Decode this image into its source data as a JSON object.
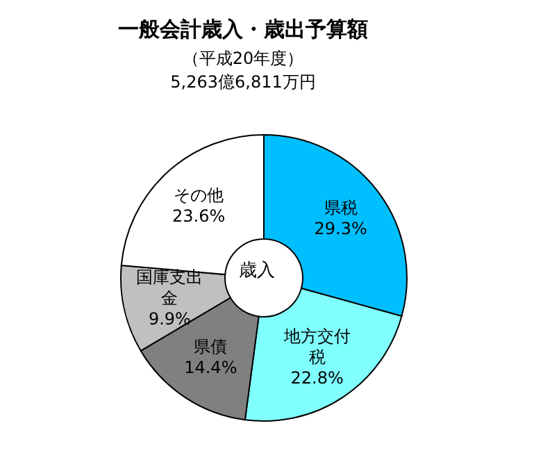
{
  "chart_data": {
    "type": "donut",
    "title": "一般会計歳入・歳出予算額",
    "subtitle": "（平成20年度）\n5,263億6,811万円",
    "annotations": [
      "歳入"
    ],
    "categories": [
      "県税",
      "地方交付税",
      "県債",
      "国庫支出金",
      "その他"
    ],
    "values": [
      29.3,
      22.8,
      14.4,
      9.9,
      23.6
    ],
    "colors": [
      "#00bfff",
      "#80ffff",
      "#808080",
      "#c0c0c0",
      "#ffffff"
    ],
    "value_labels": [
      "29.3%",
      "22.8%",
      "14.4%",
      "9.9%",
      "23.6%"
    ]
  }
}
